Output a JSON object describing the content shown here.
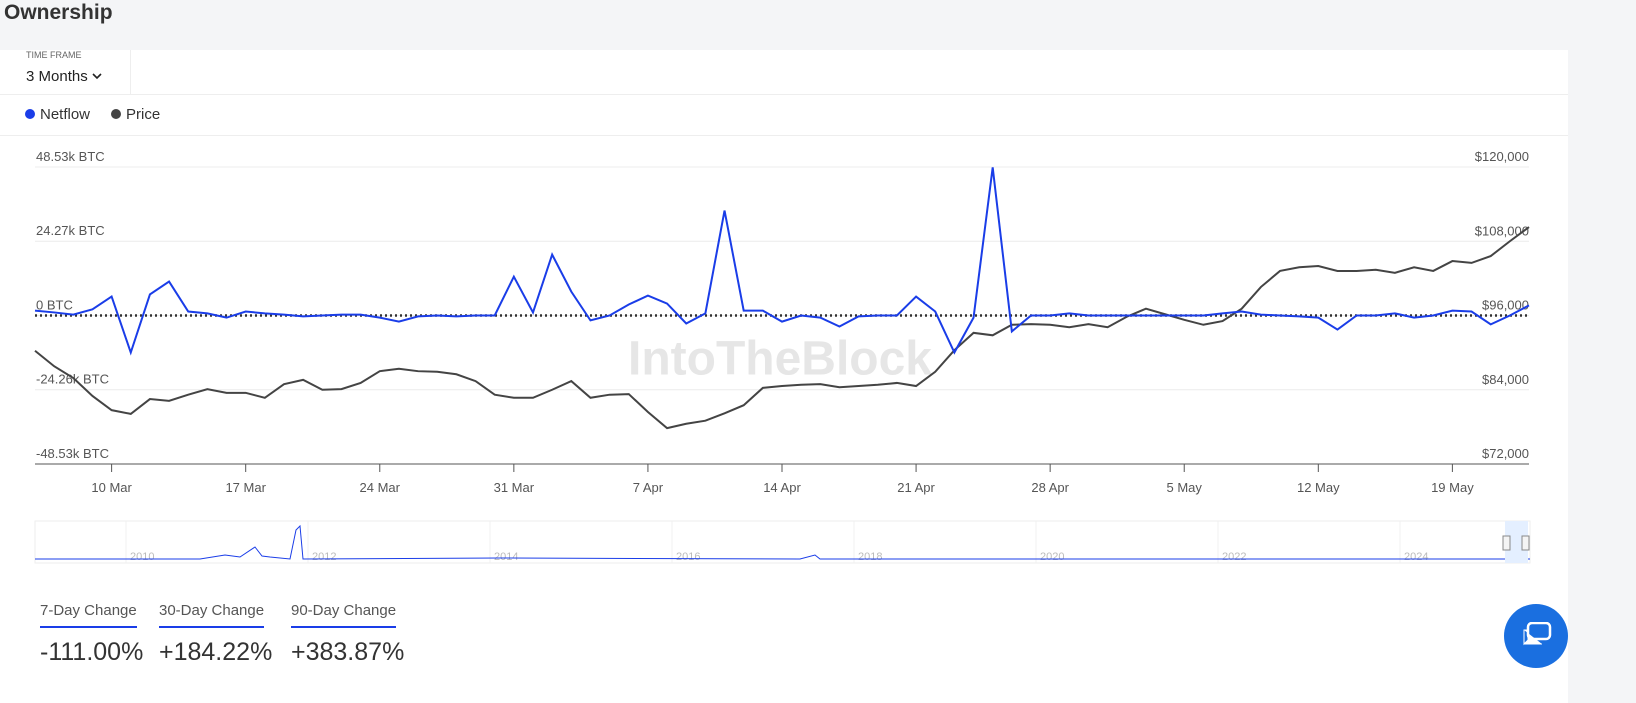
{
  "header": {
    "title": "Ownership"
  },
  "time_frame": {
    "label": "TIME FRAME",
    "value": "3 Months"
  },
  "watermark": "IntoTheBlock",
  "chart_data": {
    "type": "line",
    "categories": [
      null,
      null,
      null,
      null,
      "10 Mar",
      null,
      null,
      null,
      null,
      null,
      null,
      "17 Mar",
      null,
      null,
      null,
      null,
      null,
      null,
      "24 Mar",
      null,
      null,
      null,
      null,
      null,
      null,
      "31 Mar",
      null,
      null,
      null,
      null,
      null,
      null,
      "7 Apr",
      null,
      null,
      null,
      null,
      null,
      null,
      "14 Apr",
      null,
      null,
      null,
      null,
      null,
      null,
      "21 Apr",
      null,
      null,
      null,
      null,
      null,
      null,
      "28 Apr",
      null,
      null,
      null,
      null,
      null,
      null,
      "5 May",
      null,
      null,
      null,
      null,
      null,
      null,
      "12 May",
      null,
      null,
      null,
      null,
      null,
      null,
      "19 May",
      null,
      null,
      null,
      null
    ],
    "series": [
      {
        "name": "Netflow",
        "color": "#1a3de8",
        "values": [
          1.6,
          1.0,
          0.3,
          2.0,
          6.2,
          -12.1,
          6.9,
          11.1,
          1.3,
          0.7,
          -0.7,
          1.3,
          0.7,
          0.3,
          -0.3,
          0,
          0.3,
          0.3,
          -0.7,
          -2.0,
          -0.3,
          0,
          -0.3,
          0,
          0,
          12.7,
          1.0,
          19.9,
          7.8,
          -1.6,
          0,
          3.6,
          6.5,
          3.9,
          -2.6,
          0.7,
          34.3,
          1.6,
          1.6,
          -2.0,
          0,
          -0.7,
          -3.6,
          -0.3,
          0,
          0,
          6.2,
          1.3,
          -12.1,
          -0.7,
          48.4,
          -5.2,
          0,
          0,
          0.7,
          0,
          0,
          0,
          0,
          0,
          0,
          0,
          0.7,
          1.3,
          0.3,
          0,
          -0.3,
          -0.7,
          -4.6,
          0,
          0,
          0.7,
          -0.7,
          0,
          1.6,
          1.3,
          -2.9,
          0,
          3.3
        ]
      },
      {
        "name": "Price",
        "color": "#444444",
        "axis": "y2",
        "values": [
          90300,
          87800,
          85900,
          83000,
          80700,
          80100,
          82500,
          82200,
          83200,
          84100,
          83500,
          83500,
          82700,
          84900,
          85600,
          84000,
          84100,
          85100,
          87000,
          87400,
          87000,
          86900,
          86500,
          85400,
          83200,
          82700,
          82700,
          84000,
          85400,
          82700,
          83200,
          83300,
          80400,
          77800,
          78500,
          79000,
          80200,
          81500,
          84300,
          84600,
          84800,
          84900,
          84400,
          84600,
          84800,
          85100,
          84600,
          86900,
          90400,
          93200,
          92800,
          94500,
          94600,
          94500,
          94100,
          94600,
          94100,
          95800,
          97100,
          96200,
          95300,
          94500,
          95100,
          97100,
          100600,
          103200,
          103800,
          104000,
          103200,
          103200,
          103400,
          102900,
          103800,
          103200,
          104800,
          104500,
          105600,
          108000,
          110300
        ]
      }
    ],
    "ylim": [
      -48.53,
      48.53
    ],
    "yticks": [
      {
        "value": -48.53,
        "label": "-48.53k BTC"
      },
      {
        "value": -24.26,
        "label": "-24.26k BTC"
      },
      {
        "value": 0,
        "label": "0 BTC"
      },
      {
        "value": 24.27,
        "label": "24.27k BTC"
      },
      {
        "value": 48.53,
        "label": "48.53k BTC"
      }
    ],
    "y2lim": [
      72000,
      120000
    ],
    "y2ticks": [
      {
        "value": 72000,
        "label": "$72,000"
      },
      {
        "value": 84000,
        "label": "$84,000"
      },
      {
        "value": 96000,
        "label": "$96,000"
      },
      {
        "value": 108000,
        "label": "$108,000"
      },
      {
        "value": 120000,
        "label": "$120,000"
      }
    ],
    "grid": true
  },
  "navigator": {
    "years": [
      "2010",
      "2012",
      "2014",
      "2016",
      "2018",
      "2020",
      "2022",
      "2024"
    ]
  },
  "changes": [
    {
      "label": "7-Day Change",
      "value": "-111.00%"
    },
    {
      "label": "30-Day Change",
      "value": "+184.22%"
    },
    {
      "label": "90-Day Change",
      "value": "+383.87%"
    }
  ]
}
